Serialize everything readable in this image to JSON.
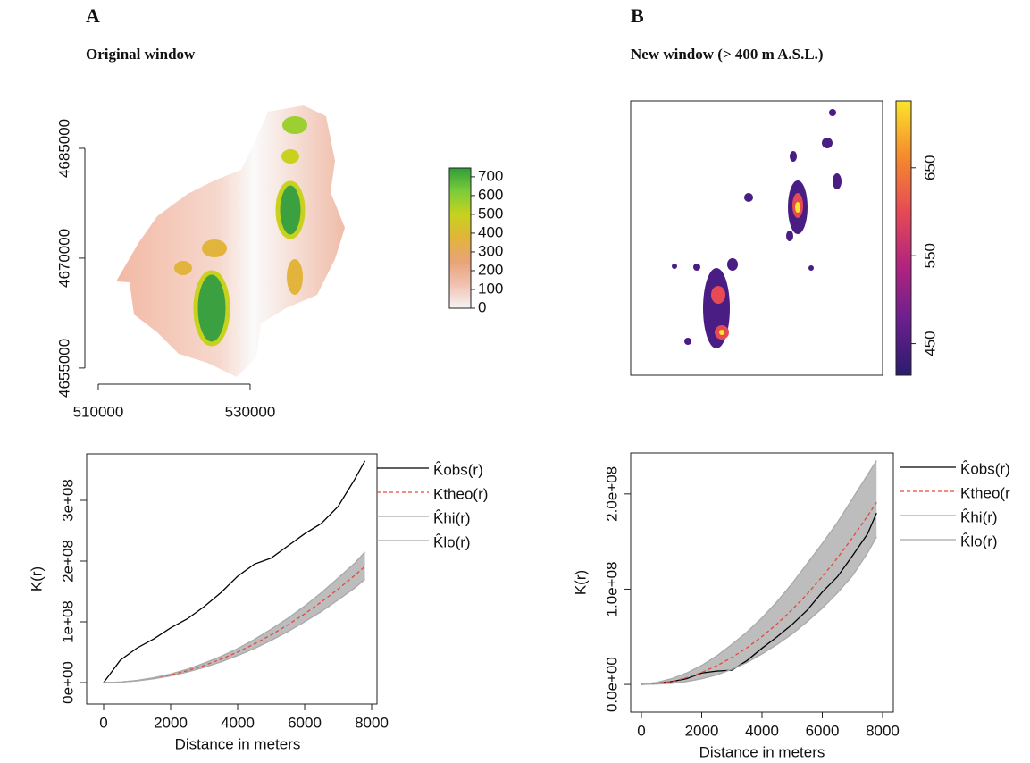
{
  "chart_data": [
    {
      "type": "raster",
      "panel": "A",
      "title": "Original window",
      "xlim": [
        509650,
        547300
      ],
      "ylim": [
        4653400,
        4690850
      ],
      "xticks": [
        510000,
        530000
      ],
      "yticks": [
        4655000,
        4670000,
        4685000
      ],
      "colorbar": {
        "lim": [
          0,
          747
        ],
        "ticks": [
          0,
          100,
          200,
          300,
          400,
          500,
          600,
          700
        ],
        "colors": [
          "#f4f4f4",
          "#f1c2b2",
          "#e8a377",
          "#e2b43c",
          "#c8d21e",
          "#7ccc3a",
          "#2e9e3a"
        ]
      }
    },
    {
      "type": "raster",
      "panel": "B",
      "title": "New window (> 400 m A.S.L.)",
      "colorbar": {
        "lim": [
          414,
          726
        ],
        "ticks": [
          450,
          550,
          650
        ],
        "colors": [
          "#2a1b6e",
          "#6a1f8e",
          "#b2237f",
          "#e64b54",
          "#f58b2d",
          "#fbe42c"
        ]
      }
    },
    {
      "type": "line",
      "xlabel": "Distance in meters",
      "ylabel": "K(r)",
      "x": [
        0,
        500,
        1000,
        1500,
        2000,
        2500,
        3000,
        3500,
        4000,
        4500,
        5000,
        5500,
        6000,
        6500,
        7000,
        7500,
        7800
      ],
      "xlim": [
        -507,
        8160
      ],
      "ylim": [
        -35300000,
        376500000
      ],
      "xticks": [
        0,
        2000,
        4000,
        6000,
        8000
      ],
      "yticks": [
        {
          "value": 0,
          "label": "0e+00"
        },
        {
          "value": 100000000,
          "label": "1e+08"
        },
        {
          "value": 200000000,
          "label": "2e+08"
        },
        {
          "value": 300000000,
          "label": "3e+08"
        }
      ],
      "envelope": {
        "color": "#bdbdbd"
      },
      "series": [
        {
          "name": "K̂obs(r)",
          "color": "#000000",
          "values": [
            0,
            37000000,
            57000000,
            72000000,
            90000000,
            105000000,
            125000000,
            148000000,
            175000000,
            195000000,
            205000000,
            225000000,
            245000000,
            262000000,
            290000000,
            335000000,
            365000000
          ]
        },
        {
          "name": "Ktheo(r)",
          "color": "#e8473b",
          "dash": true,
          "values": [
            0,
            785398,
            3141593,
            7068583,
            12566371,
            19634954,
            28274334,
            38484510,
            50265482,
            63617251,
            78539816,
            95033178,
            113097336,
            132732290,
            153938040,
            176714587,
            191134497
          ]
        },
        {
          "name": "K̂hi(r)",
          "color": "#a9a9a9",
          "values": [
            0,
            900000,
            3600000,
            8000000,
            14200000,
            22000000,
            32000000,
            43000000,
            56000000,
            71000000,
            88000000,
            106000000,
            126000000,
            148000000,
            172000000,
            197000000,
            215000000
          ]
        },
        {
          "name": "K̂lo(r)",
          "color": "#a9a9a9",
          "values": [
            0,
            700000,
            2800000,
            6200000,
            11000000,
            17400000,
            25000000,
            34000000,
            44500000,
            56000000,
            69500000,
            84000000,
            100000000,
            117000000,
            136000000,
            156000000,
            170000000
          ]
        }
      ]
    },
    {
      "type": "line",
      "xlabel": "Distance in meters",
      "ylabel": "K(r)",
      "x": [
        0,
        500,
        1000,
        1500,
        2000,
        2500,
        3000,
        3500,
        4000,
        4500,
        5000,
        5500,
        6000,
        6500,
        7000,
        7500,
        7800
      ],
      "xlim": [
        -356,
        8356
      ],
      "ylim": [
        -29000000,
        243000000
      ],
      "xticks": [
        0,
        2000,
        4000,
        6000,
        8000
      ],
      "yticks": [
        {
          "value": 0,
          "label": "0.0e+00"
        },
        {
          "value": 100000000,
          "label": "1.0e+08"
        },
        {
          "value": 200000000,
          "label": "2.0e+08"
        }
      ],
      "envelope": {
        "color": "#bdbdbd"
      },
      "series": [
        {
          "name": "K̂obs(r)",
          "color": "#000000",
          "values": [
            0,
            1000000,
            3000000,
            6000000,
            12000000,
            14000000,
            15000000,
            25000000,
            38000000,
            50000000,
            63000000,
            78000000,
            97000000,
            113000000,
            135000000,
            158000000,
            180000000
          ]
        },
        {
          "name": "Ktheo(r",
          "color": "#e8473b",
          "dash": true,
          "values": [
            0,
            785398,
            3141593,
            7068583,
            12566371,
            19634954,
            28274334,
            38484510,
            50265482,
            63617251,
            78539816,
            95033178,
            113097336,
            132732290,
            153938040,
            176714587,
            191134497
          ]
        },
        {
          "name": "K̂hi(r)",
          "color": "#a9a9a9",
          "values": [
            0,
            2000000,
            6000000,
            12000000,
            20000000,
            30000000,
            42000000,
            55000000,
            70000000,
            87000000,
            106000000,
            127000000,
            148000000,
            170000000,
            195000000,
            220000000,
            235000000
          ]
        },
        {
          "name": "K̂lo(r)",
          "color": "#a9a9a9",
          "values": [
            0,
            300000,
            1200000,
            3000000,
            6000000,
            10000000,
            16000000,
            23000000,
            32000000,
            42000000,
            53000000,
            66000000,
            80000000,
            96000000,
            114000000,
            138000000,
            155000000
          ]
        }
      ]
    }
  ]
}
